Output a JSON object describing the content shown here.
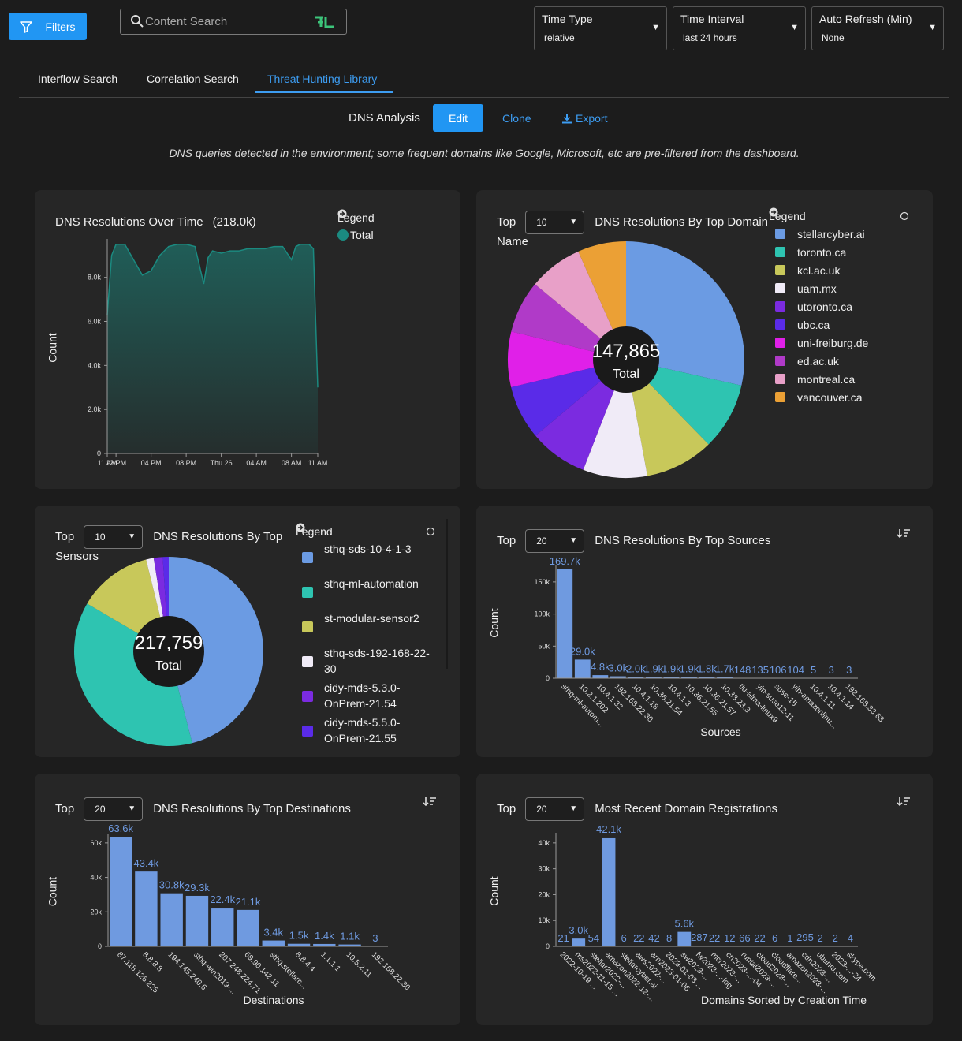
{
  "header": {
    "filters": "Filters",
    "search_placeholder": "Content Search",
    "selects": [
      {
        "label": "Time Type",
        "value": "relative"
      },
      {
        "label": "Time Interval",
        "value": "last 24 hours"
      },
      {
        "label": "Auto Refresh (Min)",
        "value": "None"
      }
    ]
  },
  "tabs": {
    "items": [
      "Interflow Search",
      "Correlation Search",
      "Threat Hunting Library"
    ],
    "active": 2
  },
  "toolbar": {
    "title": "DNS Analysis",
    "buttons": [
      "Edit",
      "Clone",
      "Export"
    ]
  },
  "description": "DNS queries detected in the environment; some frequent domains like Google, Microsoft, etc are pre-filtered from the dashboard.",
  "chart_data": [
    {
      "type": "area",
      "title": "DNS Resolutions Over Time",
      "subtitle": "(218.0k)",
      "legend_title": "Legend",
      "y_label": "Count",
      "x": [
        0,
        0.5,
        1,
        2,
        3,
        4,
        5,
        6,
        7,
        8,
        9,
        10,
        11,
        11.5,
        12,
        13,
        14,
        15,
        16,
        17,
        18,
        19,
        20,
        21,
        21.5,
        22,
        23,
        23.5,
        24
      ],
      "series": [
        {
          "name": "Total",
          "color": "#1b8a80",
          "values": [
            6300,
            9000,
            9500,
            9500,
            8800,
            8100,
            8300,
            9000,
            9400,
            9500,
            9500,
            9400,
            7700,
            8900,
            9200,
            9100,
            9200,
            9200,
            9300,
            9300,
            9300,
            9400,
            9400,
            8800,
            9400,
            9500,
            9500,
            9300,
            3000
          ]
        }
      ],
      "xlim": [
        0,
        24
      ],
      "xticks": [
        {
          "value": 0,
          "label": "11 AM"
        },
        {
          "value": 1,
          "label": "12 PM"
        },
        {
          "value": 5,
          "label": "04 PM"
        },
        {
          "value": 9,
          "label": "08 PM"
        },
        {
          "value": 13,
          "label": "Thu 26"
        },
        {
          "value": 17,
          "label": "04 AM"
        },
        {
          "value": 21,
          "label": "08 AM"
        },
        {
          "value": 24,
          "label": "11 AM"
        }
      ],
      "ylim": [
        0,
        9600
      ],
      "yticks": [
        0,
        {
          "value": 2000,
          "label": "2.0k"
        },
        {
          "value": 4000,
          "label": "4.0k"
        },
        {
          "value": 6000,
          "label": "6.0k"
        },
        {
          "value": 8000,
          "label": "8.0k"
        }
      ]
    },
    {
      "type": "pie",
      "top_label": "Top",
      "top_value": 10,
      "title": "DNS Resolutions By Top Domain Name",
      "legend_title": "Legend",
      "center_text": [
        "147,865",
        "Total"
      ],
      "categories": [
        "stellarcyber.ai",
        "toronto.ca",
        "kcl.ac.uk",
        "uam.mx",
        "utoronto.ca",
        "ubc.ca",
        "uni-freiburg.de",
        "ed.ac.uk",
        "montreal.ca",
        "vancouver.ca"
      ],
      "values": [
        42165,
        13600,
        13900,
        13000,
        11800,
        10900,
        11200,
        10600,
        10900,
        9800
      ],
      "colors": [
        "#6b9be3",
        "#2ec4b1",
        "#c8c85a",
        "#f0ebf7",
        "#7b2be0",
        "#5a2be8",
        "#e020e8",
        "#b03ac8",
        "#e8a0c8",
        "#eba035"
      ]
    },
    {
      "type": "pie",
      "top_label": "Top",
      "top_value": 10,
      "title": "DNS Resolutions By Top Sensors",
      "legend_title": "Legend",
      "center_text": [
        "217,759",
        "Total"
      ],
      "categories": [
        "sthq-sds-10-4-1-3",
        "sthq-ml-automation",
        "st-modular-sensor2",
        "sthq-sds-192-168-22-30",
        "cidy-mds-5.3.0-OnPrem-21.54",
        "cidy-mds-5.5.0-OnPrem-21.55"
      ],
      "values": [
        99100,
        80600,
        27400,
        2800,
        3300,
        2200
      ],
      "colors": [
        "#6b9be3",
        "#2ec4b1",
        "#c8c85a",
        "#f0ebf7",
        "#7b2be0",
        "#5a2be8"
      ]
    },
    {
      "type": "bar",
      "top_label": "Top",
      "top_value": 20,
      "title": "DNS Resolutions By Top Sources",
      "x_label": "Sources",
      "y_label": "Count",
      "color": "#6f9ae0",
      "categories": [
        "sthq-ml-autom...",
        "10.2.1.202",
        "10.4.1.32",
        "192.168.22.30",
        "10.4.1.18",
        "10.36.21.54",
        "10.4.1.3",
        "10.36.21.55",
        "10.36.21.57",
        "10.33.23.3",
        "tlu-alma-linux9",
        "yin-suse12-11",
        "suse-15",
        "yin-amazonlinu...",
        "10.4.1.11",
        "10.4.1.14",
        "192.168.33.63"
      ],
      "values": [
        169700,
        29000,
        4800,
        3000,
        2000,
        1900,
        1900,
        1900,
        1800,
        1700,
        148,
        135,
        106,
        104,
        5,
        3,
        3
      ],
      "value_labels": [
        "169.7k",
        "29.0k",
        "4.8k",
        "3.0k",
        "2.0k",
        "1.9k",
        "1.9k",
        "1.9k",
        "1.8k",
        "1.7k",
        "148",
        "135",
        "106",
        "104",
        "5",
        "3",
        "3"
      ],
      "ylim": [
        0,
        172000
      ],
      "yticks": [
        0,
        {
          "value": 50000,
          "label": "50k"
        },
        {
          "value": 100000,
          "label": "100k"
        },
        {
          "value": 150000,
          "label": "150k"
        }
      ]
    },
    {
      "type": "bar",
      "top_label": "Top",
      "top_value": 20,
      "title": "DNS Resolutions By Top Destinations",
      "x_label": "Destinations",
      "y_label": "Count",
      "color": "#6f9ae0",
      "categories": [
        "87.118.126.225",
        "8.8.8.8",
        "194.145.240.6",
        "sthq-win2019-...",
        "207.248.224.71",
        "69.90.142.11",
        "sthq.stellarc...",
        "8.8.4.4",
        "1.1.1.1",
        "10.5.2.11",
        "192.168.22.30"
      ],
      "values": [
        63600,
        43400,
        30800,
        29300,
        22400,
        21100,
        3400,
        1500,
        1400,
        1100,
        3
      ],
      "value_labels": [
        "63.6k",
        "43.4k",
        "30.8k",
        "29.3k",
        "22.4k",
        "21.1k",
        "3.4k",
        "1.5k",
        "1.4k",
        "1.1k",
        "3"
      ],
      "ylim": [
        0,
        63600
      ],
      "yticks": [
        0,
        {
          "value": 20000,
          "label": "20k"
        },
        {
          "value": 40000,
          "label": "40k"
        },
        {
          "value": 60000,
          "label": "60k"
        }
      ]
    },
    {
      "type": "bar",
      "top_label": "Top",
      "top_value": 20,
      "title": "Most Recent Domain Registrations",
      "x_label": "Domains Sorted by Creation Time",
      "y_label": "Count",
      "color": "#6f9ae0",
      "categories": [
        "2022-10-19 ...",
        "ms2022-11-15 ...",
        "stellar2022-...",
        "amazon2022-12-...",
        "stellarcyber.ai",
        "aws2022-...",
        "arn2023-01-06",
        "2023-01-03 ...",
        "sw2023-...",
        "fw2023-...-log",
        "mcr2023-...",
        "cn2023-...-04",
        "runtal2023-...",
        "cloud2023-...",
        "cloudflare...",
        "amazon2023-...",
        "cdn2023-...",
        "ubuntu.com",
        "2023-...-24",
        "skype.com"
      ],
      "values": [
        21,
        3000,
        54,
        42100,
        6,
        22,
        42,
        8,
        5600,
        287,
        22,
        12,
        66,
        22,
        6,
        1,
        295,
        2,
        2,
        4
      ],
      "value_labels": [
        "21",
        "3.0k",
        "54",
        "42.1k",
        "6",
        "22",
        "42",
        "8",
        "5.6k",
        "287",
        "22",
        "12",
        "66",
        "22",
        "6",
        "1",
        "295",
        "2",
        "2",
        "4"
      ],
      "ylim": [
        0,
        42700
      ],
      "yticks": [
        0,
        {
          "value": 10000,
          "label": "10k"
        },
        {
          "value": 20000,
          "label": "20k"
        },
        {
          "value": 30000,
          "label": "30k"
        },
        {
          "value": 40000,
          "label": "40k"
        }
      ]
    }
  ]
}
